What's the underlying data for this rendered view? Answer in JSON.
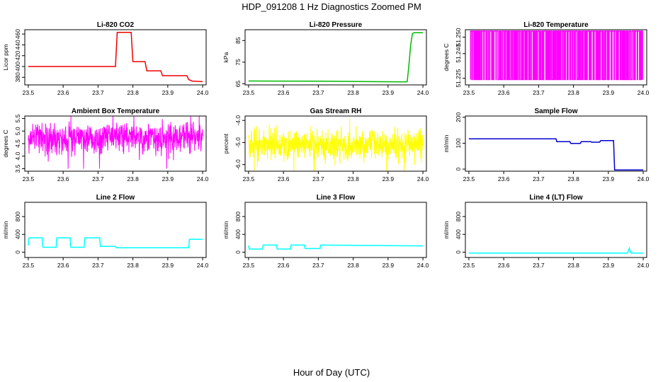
{
  "figure": {
    "title": "HDP_091208  1 Hz Diagnostics Zoomed PM",
    "xlabel": "Hour of Day (UTC)"
  },
  "chart_data": [
    {
      "type": "line",
      "title": "Li-820 CO2",
      "ylabel": "Licor ppm",
      "color": "#ee0000",
      "xlim": [
        23.49,
        24.01
      ],
      "ylim": [
        366,
        468
      ],
      "xticks": [
        "23.5",
        "23.6",
        "23.7",
        "23.8",
        "23.9",
        "24.0"
      ],
      "yticks": [
        "380",
        "400",
        "420",
        "440",
        "460"
      ],
      "x": [
        23.5,
        23.75,
        23.755,
        23.795,
        23.8,
        23.835,
        23.84,
        23.88,
        23.885,
        23.955,
        23.96,
        23.97,
        24.0
      ],
      "y": [
        400,
        400,
        463,
        463,
        409,
        409,
        392,
        392,
        383,
        383,
        376,
        373,
        372
      ]
    },
    {
      "type": "line",
      "title": "Li-820 Pressure",
      "ylabel": "kPa",
      "color": "#00bb00",
      "xlim": [
        23.49,
        24.01
      ],
      "ylim": [
        64.5,
        90
      ],
      "xticks": [
        "23.5",
        "23.6",
        "23.7",
        "23.8",
        "23.9",
        "24.0"
      ],
      "yticks": [
        "65",
        "75",
        "85"
      ],
      "x": [
        23.5,
        23.7,
        23.95,
        23.955,
        23.96,
        23.965,
        23.97,
        23.975,
        24.0
      ],
      "y": [
        66.3,
        66.2,
        65.9,
        66.0,
        74,
        83,
        88.3,
        88.6,
        88.6
      ]
    },
    {
      "type": "line",
      "title": "Li-820 Temperature",
      "ylabel": "degrees C",
      "color": "#ff00ff",
      "xlim": [
        23.49,
        24.01
      ],
      "ylim": [
        51.221,
        51.2545
      ],
      "xticks": [
        "23.5",
        "23.6",
        "23.7",
        "23.8",
        "23.9",
        "24.0"
      ],
      "yticks": [
        "51.225",
        "51.240",
        "51.250"
      ],
      "values_alternate_between": [
        51.2242,
        51.2537
      ]
    },
    {
      "type": "line",
      "title": "Ambient Box Temperature",
      "ylabel": "degrees C",
      "color": "#ff00ff",
      "xlim": [
        23.49,
        24.01
      ],
      "ylim": [
        3.4,
        5.6
      ],
      "xticks": [
        "23.5",
        "23.6",
        "23.7",
        "23.8",
        "23.9",
        "24.0"
      ],
      "yticks": [
        "3.5",
        "4.0",
        "4.5",
        "5.0",
        "5.5"
      ],
      "mean": 4.8,
      "range": [
        3.5,
        5.6
      ]
    },
    {
      "type": "line",
      "title": "Gas Stream RH",
      "ylabel": "percent",
      "color": "#ffff00",
      "xlim": [
        23.49,
        24.01
      ],
      "ylim": [
        -6.3,
        -3.8
      ],
      "xticks": [
        "23.5",
        "23.6",
        "23.7",
        "23.8",
        "23.9",
        "24.0"
      ],
      "yticks": [
        "-6.0",
        "-5.0",
        "-4.0"
      ],
      "mean": -5.1,
      "range": [
        -6.3,
        -3.9
      ]
    },
    {
      "type": "line",
      "title": "Sample Flow",
      "ylabel": "ml/min",
      "color": "#0000cc",
      "xlim": [
        23.49,
        24.01
      ],
      "ylim": [
        -8,
        205
      ],
      "xticks": [
        "23.5",
        "23.6",
        "23.7",
        "23.8",
        "23.9",
        "24.0"
      ],
      "yticks": [
        "0",
        "100",
        "200"
      ],
      "x": [
        23.5,
        23.75,
        23.752,
        23.79,
        23.792,
        23.82,
        23.822,
        23.85,
        23.852,
        23.875,
        23.878,
        23.915,
        23.918,
        24.0
      ],
      "y": [
        117,
        117,
        106,
        106,
        99,
        99,
        106,
        106,
        104,
        104,
        110,
        110,
        -3,
        -3
      ]
    },
    {
      "type": "line",
      "title": "Line 2 Flow",
      "ylabel": "ml/min",
      "color": "#00ffff",
      "xlim": [
        23.49,
        24.01
      ],
      "ylim": [
        -120,
        1120
      ],
      "xticks": [
        "23.5",
        "23.6",
        "23.7",
        "23.8",
        "23.9",
        "24.0"
      ],
      "yticks": [
        "0",
        "400",
        "800"
      ],
      "x": [
        23.5,
        23.502,
        23.54,
        23.542,
        23.58,
        23.582,
        23.62,
        23.622,
        23.66,
        23.662,
        23.705,
        23.707,
        23.75,
        23.752,
        23.96,
        23.962,
        24.0
      ],
      "y": [
        150,
        320,
        320,
        110,
        110,
        320,
        320,
        110,
        110,
        320,
        320,
        130,
        130,
        100,
        100,
        290,
        290
      ]
    },
    {
      "type": "line",
      "title": "Line 3 Flow",
      "ylabel": "ml/min",
      "color": "#00ffff",
      "xlim": [
        23.49,
        24.01
      ],
      "ylim": [
        -120,
        1120
      ],
      "xticks": [
        "23.5",
        "23.6",
        "23.7",
        "23.8",
        "23.9",
        "24.0"
      ],
      "yticks": [
        "0",
        "400",
        "800"
      ],
      "x": [
        23.5,
        23.502,
        23.54,
        23.542,
        23.58,
        23.582,
        23.62,
        23.622,
        23.66,
        23.662,
        23.705,
        23.707,
        24.0
      ],
      "y": [
        150,
        70,
        70,
        160,
        160,
        70,
        70,
        160,
        160,
        80,
        80,
        160,
        140
      ]
    },
    {
      "type": "line",
      "title": "Line 4 (LT) Flow",
      "ylabel": "ml/min",
      "color": "#00ffff",
      "xlim": [
        23.49,
        24.01
      ],
      "ylim": [
        -120,
        1120
      ],
      "xticks": [
        "23.5",
        "23.6",
        "23.7",
        "23.8",
        "23.9",
        "24.0"
      ],
      "yticks": [
        "0",
        "400",
        "800"
      ],
      "x": [
        23.5,
        23.955,
        23.958,
        23.96,
        23.962,
        23.965,
        24.0
      ],
      "y": [
        -20,
        -20,
        40,
        90,
        30,
        -20,
        -20
      ]
    }
  ]
}
